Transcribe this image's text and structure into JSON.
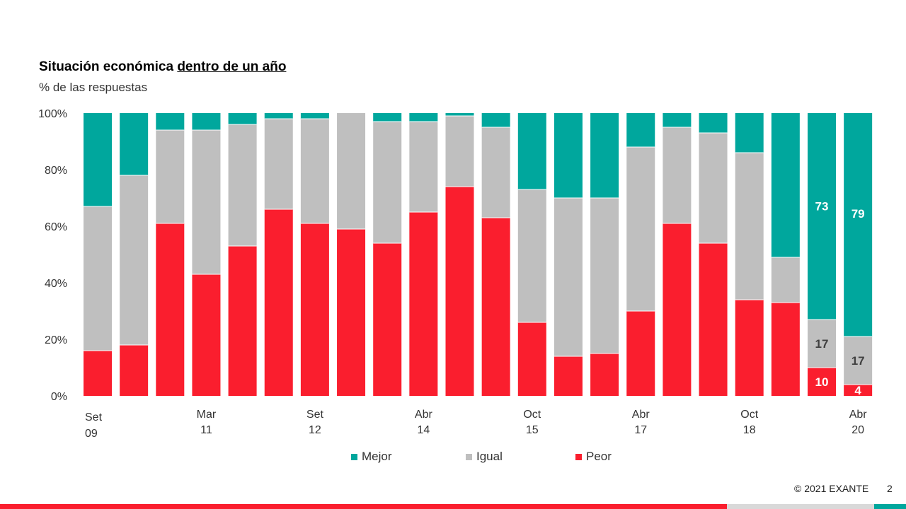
{
  "title": {
    "part1": "Situación económica ",
    "part2": "dentro de un año"
  },
  "subtitle": "% de las respuestas",
  "legend": {
    "position": "bottom",
    "items": [
      {
        "label": "Mejor",
        "color": "#00A79D"
      },
      {
        "label": "Igual",
        "color": "#BFBFBF"
      },
      {
        "label": "Peor",
        "color": "#FA1E2E"
      }
    ]
  },
  "footer": {
    "copyright": "© 2021 EXANTE",
    "page": "2"
  },
  "colors": {
    "mejor": "#00A79D",
    "igual": "#BFBFBF",
    "peor": "#FA1E2E",
    "bar_gray": "#D9D9D9"
  },
  "chart_data": {
    "type": "bar",
    "stacked": true,
    "ylim": [
      0,
      100
    ],
    "yticks": [
      "0%",
      "20%",
      "40%",
      "60%",
      "80%",
      "100%"
    ],
    "grid": false,
    "x_labels": [
      {
        "index": 0,
        "line1": "Set",
        "line2": "09"
      },
      {
        "index": 3,
        "line1": "Mar",
        "line2": "11"
      },
      {
        "index": 6,
        "line1": "Set",
        "line2": "12"
      },
      {
        "index": 9,
        "line1": "Abr",
        "line2": "14"
      },
      {
        "index": 12,
        "line1": "Oct",
        "line2": "15"
      },
      {
        "index": 15,
        "line1": "Abr",
        "line2": "17"
      },
      {
        "index": 18,
        "line1": "Oct",
        "line2": "18"
      },
      {
        "index": 21,
        "line1": "Abr",
        "line2": "20"
      }
    ],
    "series": [
      {
        "name": "Peor",
        "values": [
          16,
          18,
          61,
          43,
          53,
          66,
          61,
          59,
          54,
          65,
          74,
          63,
          26,
          14,
          15,
          30,
          61,
          54,
          34,
          33,
          10,
          4
        ]
      },
      {
        "name": "Igual",
        "values": [
          51,
          60,
          33,
          51,
          43,
          32,
          37,
          41,
          43,
          32,
          25,
          32,
          47,
          56,
          55,
          58,
          34,
          39,
          52,
          16,
          17,
          17
        ]
      },
      {
        "name": "Mejor",
        "values": [
          33,
          22,
          6,
          6,
          4,
          2,
          2,
          0,
          3,
          3,
          1,
          5,
          27,
          30,
          30,
          12,
          5,
          7,
          14,
          51,
          73,
          79
        ]
      }
    ],
    "data_labels": [
      {
        "index": 20,
        "series": "Mejor",
        "text": "73"
      },
      {
        "index": 20,
        "series": "Igual",
        "text": "17"
      },
      {
        "index": 20,
        "series": "Peor",
        "text": "10"
      },
      {
        "index": 21,
        "series": "Mejor",
        "text": "79"
      },
      {
        "index": 21,
        "series": "Igual",
        "text": "17"
      },
      {
        "index": 21,
        "series": "Peor",
        "text": "4"
      }
    ]
  }
}
